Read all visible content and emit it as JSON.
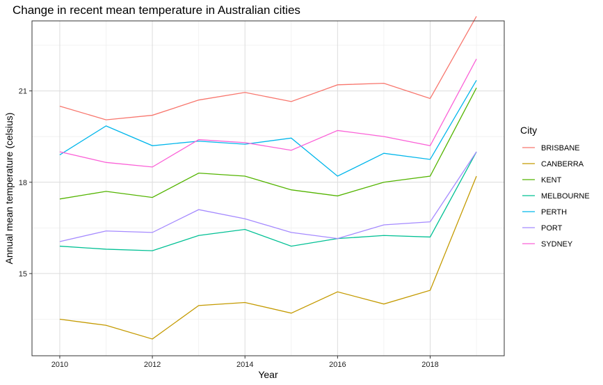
{
  "chart_data": {
    "type": "line",
    "title": "Change in recent mean temperature in Australian cities",
    "xlabel": "Year",
    "ylabel": "Annual mean temperature (celsius)",
    "x": [
      2010,
      2011,
      2012,
      2013,
      2014,
      2015,
      2016,
      2017,
      2018,
      2019
    ],
    "xlim": [
      2009.4,
      2019.6
    ],
    "ylim": [
      12.3,
      23.3
    ],
    "x_ticks": [
      2010,
      2012,
      2014,
      2016,
      2018
    ],
    "y_ticks": [
      15,
      18,
      21
    ],
    "grid": true,
    "legend": {
      "title": "City",
      "position": "right"
    },
    "series": [
      {
        "name": "BRISBANE",
        "color": "#F8766D",
        "values": [
          20.5,
          20.05,
          20.2,
          20.7,
          20.95,
          20.65,
          21.2,
          21.25,
          20.75,
          23.45
        ]
      },
      {
        "name": "CANBERRA",
        "color": "#C49A00",
        "values": [
          13.5,
          13.3,
          12.85,
          13.95,
          14.05,
          13.7,
          14.4,
          14.0,
          14.45,
          18.2
        ]
      },
      {
        "name": "KENT",
        "color": "#53B400",
        "values": [
          17.45,
          17.7,
          17.5,
          18.3,
          18.2,
          17.75,
          17.55,
          18.0,
          18.2,
          21.1
        ]
      },
      {
        "name": "MELBOURNE",
        "color": "#00C094",
        "values": [
          15.9,
          15.8,
          15.75,
          16.25,
          16.45,
          15.9,
          16.15,
          16.25,
          16.2,
          19.0
        ]
      },
      {
        "name": "PERTH",
        "color": "#00B6EB",
        "values": [
          18.9,
          19.85,
          19.2,
          19.35,
          19.25,
          19.45,
          18.2,
          18.95,
          18.75,
          21.35
        ]
      },
      {
        "name": "PORT",
        "color": "#A58AFF",
        "values": [
          16.05,
          16.4,
          16.35,
          17.1,
          16.8,
          16.35,
          16.15,
          16.6,
          16.7,
          19.0
        ]
      },
      {
        "name": "SYDNEY",
        "color": "#FB61D7",
        "values": [
          19.0,
          18.65,
          18.5,
          19.4,
          19.3,
          19.05,
          19.7,
          19.5,
          19.2,
          22.05
        ]
      }
    ]
  }
}
